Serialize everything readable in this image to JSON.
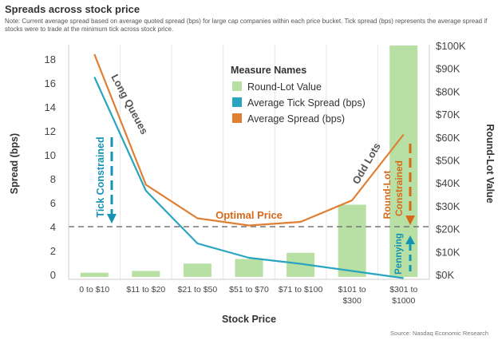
{
  "title": "Spreads across stock price",
  "note": "Note: Current average spread based on average quoted spread (bps) for large cap companies within each price bucket.  Tick spread (bps) represents the average spread if stocks were to trade at the minimum tick across stock price.",
  "source": "Source: Nasdaq Economic Research",
  "chart_data": {
    "type": "bar",
    "categories": [
      "0 to $10",
      "$11 to $20",
      "$21 to $50",
      "$51 to $70",
      "$71 to $100",
      "$101 to $300",
      "$301 to $1000"
    ],
    "category_lines": [
      [
        "0 to $10"
      ],
      [
        "$11 to $20"
      ],
      [
        "$21 to $50"
      ],
      [
        "$51 to $70"
      ],
      [
        "$71 to $100"
      ],
      [
        "$101 to",
        "$300"
      ],
      [
        "$301 to",
        "$1000"
      ]
    ],
    "xlabel": "Stock Price",
    "ylabel": "Spread (bps)",
    "y2label": "Round-Lot Value",
    "ylim": [
      0,
      18.5
    ],
    "y2lim": [
      0,
      100000
    ],
    "yticks": [
      0,
      2,
      4,
      6,
      8,
      10,
      12,
      14,
      16,
      18
    ],
    "y2ticks": [
      0,
      10000,
      20000,
      30000,
      40000,
      50000,
      60000,
      70000,
      80000,
      90000,
      100000
    ],
    "y2ticklabels": [
      "$0K",
      "$10K",
      "$20K",
      "$30K",
      "$40K",
      "$50K",
      "$60K",
      "$70K",
      "$80K",
      "$90K",
      "$100K"
    ],
    "legend_title": "Measure Names",
    "legend_position": "top-center",
    "series": [
      {
        "name": "Round-Lot Value",
        "type": "bar",
        "axis": "right",
        "color": "#b8e0a4",
        "values": [
          800,
          1600,
          4800,
          6800,
          9500,
          30500,
          100000
        ]
      },
      {
        "name": "Average Tick Spread (bps)",
        "type": "line",
        "axis": "left",
        "color": "#2aa5bf",
        "values": [
          16.5,
          7.0,
          2.6,
          1.4,
          0.9,
          0.3,
          -0.3
        ]
      },
      {
        "name": "Average Spread (bps)",
        "type": "line",
        "axis": "left",
        "color": "#e07e31",
        "values": [
          18.4,
          7.5,
          4.7,
          4.1,
          4.4,
          6.2,
          11.7
        ]
      }
    ],
    "reference_line": {
      "value": 4,
      "axis": "left",
      "style": "dashed",
      "color": "#777777"
    },
    "annotations": [
      {
        "text": "Long Queues",
        "color": "#555555"
      },
      {
        "text": "Tick Constrained",
        "color": "#1593b5"
      },
      {
        "text": "Optimal Price",
        "color": "#d66a1a"
      },
      {
        "text": "Odd Lots",
        "color": "#555555"
      },
      {
        "text": "Round-Lot",
        "color": "#d66a1a"
      },
      {
        "text": "Constrained",
        "color": "#d66a1a"
      },
      {
        "text": "Pennying",
        "color": "#1593b5"
      }
    ]
  }
}
